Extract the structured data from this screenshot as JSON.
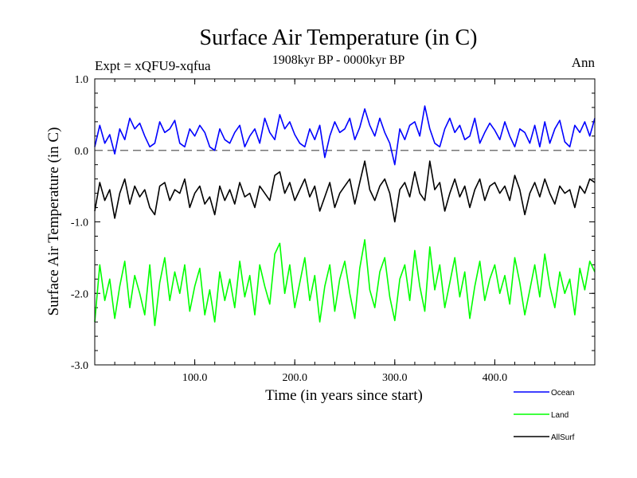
{
  "chart_data": {
    "type": "line",
    "title": "Surface Air Temperature (in C)",
    "subtitle": "1908kyr BP - 0000kyr BP",
    "left_label": "Expt = xQFU9-xqfua",
    "right_label": "Ann",
    "xlabel": "Time (in years since start)",
    "ylabel": "Surface Air Temperature (in C)",
    "xlim": [
      0,
      500
    ],
    "ylim": [
      -3.0,
      1.0
    ],
    "x_ticks": [
      100,
      200,
      300,
      400
    ],
    "x_tick_labels": [
      "100.0",
      "200.0",
      "300.0",
      "400.0"
    ],
    "y_ticks": [
      1.0,
      0.0,
      -1.0,
      -2.0,
      -3.0
    ],
    "y_tick_labels": [
      "1.0",
      "0.0",
      "-1.0",
      "-2.0",
      "-3.0"
    ],
    "reference_line": {
      "y": 0.0,
      "style": "dashed",
      "color": "#777777"
    },
    "legend_position": "bottom-right",
    "series": [
      {
        "name": "Ocean",
        "color": "#0000ff",
        "x": [
          0,
          5,
          10,
          15,
          20,
          25,
          30,
          35,
          40,
          45,
          50,
          55,
          60,
          65,
          70,
          75,
          80,
          85,
          90,
          95,
          100,
          105,
          110,
          115,
          120,
          125,
          130,
          135,
          140,
          145,
          150,
          155,
          160,
          165,
          170,
          175,
          180,
          185,
          190,
          195,
          200,
          205,
          210,
          215,
          220,
          225,
          230,
          235,
          240,
          245,
          250,
          255,
          260,
          265,
          270,
          275,
          280,
          285,
          290,
          295,
          300,
          305,
          310,
          315,
          320,
          325,
          330,
          335,
          340,
          345,
          350,
          355,
          360,
          365,
          370,
          375,
          380,
          385,
          390,
          395,
          400,
          405,
          410,
          415,
          420,
          425,
          430,
          435,
          440,
          445,
          450,
          455,
          460,
          465,
          470,
          475,
          480,
          485,
          490,
          495,
          500
        ],
        "values": [
          0.05,
          0.35,
          0.1,
          0.22,
          -0.05,
          0.3,
          0.15,
          0.45,
          0.3,
          0.38,
          0.2,
          0.05,
          0.1,
          0.4,
          0.25,
          0.3,
          0.42,
          0.1,
          0.05,
          0.3,
          0.2,
          0.35,
          0.25,
          0.05,
          0.0,
          0.3,
          0.15,
          0.1,
          0.25,
          0.35,
          0.05,
          0.2,
          0.3,
          0.1,
          0.45,
          0.25,
          0.15,
          0.5,
          0.3,
          0.4,
          0.22,
          0.1,
          0.05,
          0.3,
          0.15,
          0.35,
          -0.1,
          0.2,
          0.4,
          0.25,
          0.3,
          0.45,
          0.15,
          0.32,
          0.58,
          0.35,
          0.2,
          0.45,
          0.25,
          0.1,
          -0.2,
          0.3,
          0.15,
          0.35,
          0.4,
          0.2,
          0.62,
          0.3,
          0.1,
          0.05,
          0.3,
          0.45,
          0.25,
          0.35,
          0.15,
          0.2,
          0.45,
          0.1,
          0.25,
          0.38,
          0.28,
          0.15,
          0.4,
          0.2,
          0.05,
          0.3,
          0.25,
          0.1,
          0.35,
          0.05,
          0.4,
          0.1,
          0.3,
          0.42,
          0.12,
          0.05,
          0.35,
          0.25,
          0.4,
          0.2,
          0.45
        ]
      },
      {
        "name": "Land",
        "color": "#00ff00",
        "x": [
          0,
          5,
          10,
          15,
          20,
          25,
          30,
          35,
          40,
          45,
          50,
          55,
          60,
          65,
          70,
          75,
          80,
          85,
          90,
          95,
          100,
          105,
          110,
          115,
          120,
          125,
          130,
          135,
          140,
          145,
          150,
          155,
          160,
          165,
          170,
          175,
          180,
          185,
          190,
          195,
          200,
          205,
          210,
          215,
          220,
          225,
          230,
          235,
          240,
          245,
          250,
          255,
          260,
          265,
          270,
          275,
          280,
          285,
          290,
          295,
          300,
          305,
          310,
          315,
          320,
          325,
          330,
          335,
          340,
          345,
          350,
          355,
          360,
          365,
          370,
          375,
          380,
          385,
          390,
          395,
          400,
          405,
          410,
          415,
          420,
          425,
          430,
          435,
          440,
          445,
          450,
          455,
          460,
          465,
          470,
          475,
          480,
          485,
          490,
          495,
          500
        ],
        "values": [
          -2.4,
          -1.6,
          -2.1,
          -1.8,
          -2.35,
          -1.9,
          -1.55,
          -2.2,
          -1.75,
          -2.0,
          -2.3,
          -1.6,
          -2.45,
          -1.85,
          -1.5,
          -2.1,
          -1.7,
          -2.0,
          -1.6,
          -2.25,
          -1.9,
          -1.65,
          -2.3,
          -1.95,
          -2.4,
          -1.7,
          -2.1,
          -1.8,
          -2.2,
          -1.55,
          -2.05,
          -1.75,
          -2.3,
          -1.6,
          -1.9,
          -2.15,
          -1.45,
          -1.3,
          -2.0,
          -1.6,
          -2.2,
          -1.85,
          -1.5,
          -2.1,
          -1.75,
          -2.4,
          -1.9,
          -1.6,
          -2.25,
          -1.8,
          -1.55,
          -2.0,
          -2.35,
          -1.65,
          -1.25,
          -1.95,
          -2.2,
          -1.7,
          -1.5,
          -2.05,
          -2.38,
          -1.8,
          -1.6,
          -2.1,
          -1.4,
          -1.9,
          -2.25,
          -1.35,
          -1.95,
          -1.6,
          -2.2,
          -1.85,
          -1.5,
          -2.05,
          -1.7,
          -2.35,
          -1.9,
          -1.55,
          -2.1,
          -1.8,
          -1.6,
          -2.0,
          -1.75,
          -2.15,
          -1.5,
          -1.85,
          -2.3,
          -1.95,
          -1.6,
          -2.05,
          -1.45,
          -1.9,
          -2.2,
          -1.7,
          -2.0,
          -1.8,
          -2.3,
          -1.65,
          -1.95,
          -1.55,
          -1.7
        ]
      },
      {
        "name": "AllSurf",
        "color": "#000000",
        "x": [
          0,
          5,
          10,
          15,
          20,
          25,
          30,
          35,
          40,
          45,
          50,
          55,
          60,
          65,
          70,
          75,
          80,
          85,
          90,
          95,
          100,
          105,
          110,
          115,
          120,
          125,
          130,
          135,
          140,
          145,
          150,
          155,
          160,
          165,
          170,
          175,
          180,
          185,
          190,
          195,
          200,
          205,
          210,
          215,
          220,
          225,
          230,
          235,
          240,
          245,
          250,
          255,
          260,
          265,
          270,
          275,
          280,
          285,
          290,
          295,
          300,
          305,
          310,
          315,
          320,
          325,
          330,
          335,
          340,
          345,
          350,
          355,
          360,
          365,
          370,
          375,
          380,
          385,
          390,
          395,
          400,
          405,
          410,
          415,
          420,
          425,
          430,
          435,
          440,
          445,
          450,
          455,
          460,
          465,
          470,
          475,
          480,
          485,
          490,
          495,
          500
        ],
        "values": [
          -0.85,
          -0.45,
          -0.7,
          -0.55,
          -0.95,
          -0.6,
          -0.4,
          -0.75,
          -0.5,
          -0.65,
          -0.55,
          -0.8,
          -0.9,
          -0.5,
          -0.45,
          -0.7,
          -0.55,
          -0.6,
          -0.4,
          -0.8,
          -0.6,
          -0.5,
          -0.75,
          -0.65,
          -0.9,
          -0.5,
          -0.7,
          -0.55,
          -0.75,
          -0.45,
          -0.65,
          -0.6,
          -0.8,
          -0.5,
          -0.6,
          -0.7,
          -0.35,
          -0.3,
          -0.6,
          -0.45,
          -0.7,
          -0.55,
          -0.4,
          -0.65,
          -0.5,
          -0.85,
          -0.65,
          -0.45,
          -0.8,
          -0.6,
          -0.5,
          -0.4,
          -0.75,
          -0.45,
          -0.15,
          -0.55,
          -0.7,
          -0.5,
          -0.4,
          -0.6,
          -1.0,
          -0.55,
          -0.45,
          -0.65,
          -0.3,
          -0.6,
          -0.7,
          -0.15,
          -0.55,
          -0.45,
          -0.85,
          -0.6,
          -0.4,
          -0.65,
          -0.5,
          -0.8,
          -0.55,
          -0.4,
          -0.7,
          -0.5,
          -0.45,
          -0.6,
          -0.5,
          -0.7,
          -0.35,
          -0.55,
          -0.9,
          -0.6,
          -0.45,
          -0.65,
          -0.4,
          -0.6,
          -0.75,
          -0.5,
          -0.6,
          -0.55,
          -0.8,
          -0.5,
          -0.6,
          -0.4,
          -0.45
        ]
      }
    ]
  }
}
